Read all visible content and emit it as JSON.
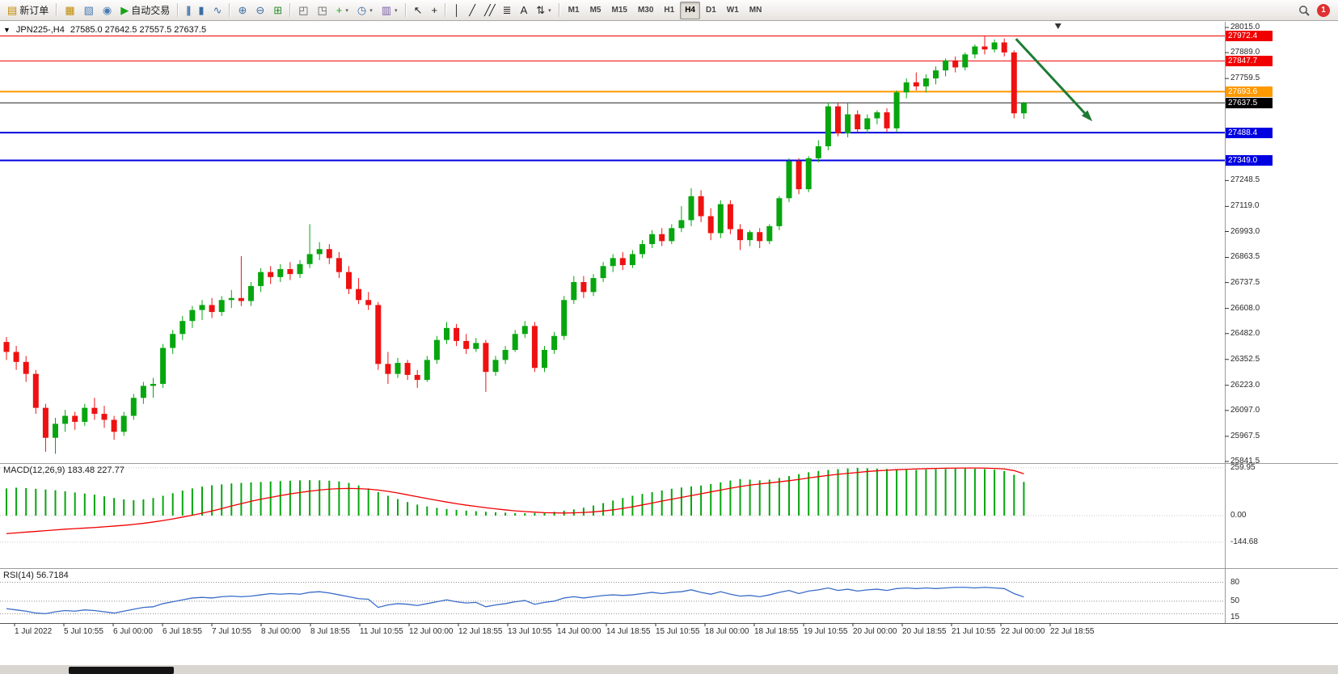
{
  "toolbar": {
    "new_order_label": "新订单",
    "autotrading_label": "自动交易",
    "notification_count": "1",
    "timeframes": [
      "M1",
      "M5",
      "M15",
      "M30",
      "H1",
      "H4",
      "D1",
      "W1",
      "MN"
    ],
    "active_timeframe": "H4",
    "groups": [
      {
        "items": [
          {
            "name": "new-order-button",
            "glyph": "▤",
            "color": "#C08A00",
            "label": "新订单"
          }
        ]
      },
      {
        "items": [
          {
            "name": "new-chart-button",
            "glyph": "▦",
            "color": "#C08A00"
          },
          {
            "name": "profiles-button",
            "glyph": "▧",
            "color": "#4A7AB5"
          },
          {
            "name": "refresh-button",
            "glyph": "◉",
            "color": "#4A7AB5"
          },
          {
            "name": "autotrading-button",
            "glyph": "▶",
            "color": "#1BA11B",
            "label": "自动交易"
          }
        ]
      },
      {
        "items": [
          {
            "name": "bar-chart-button",
            "glyph": "|||",
            "color": "#3A6EA5"
          },
          {
            "name": "candlestick-chart-button",
            "glyph": "▮",
            "color": "#3A6EA5"
          },
          {
            "name": "line-chart-button",
            "glyph": "∿",
            "color": "#3A6EA5"
          }
        ]
      },
      {
        "items": [
          {
            "name": "zoom-in-button",
            "glyph": "⊕",
            "color": "#3A6EA5"
          },
          {
            "name": "zoom-out-button",
            "glyph": "⊖",
            "color": "#3A6EA5"
          },
          {
            "name": "tile-windows-button",
            "glyph": "⊞",
            "color": "#2E8B2E"
          }
        ]
      },
      {
        "items": [
          {
            "name": "cascade-windows-button",
            "glyph": "◰",
            "color": "#555555"
          },
          {
            "name": "arrange-windows-button",
            "glyph": "◳",
            "color": "#555555"
          },
          {
            "name": "indicators-button",
            "glyph": "+",
            "color": "#1BA11B",
            "caret": true
          },
          {
            "name": "periods-button",
            "glyph": "◷",
            "color": "#3A6EA5",
            "caret": true
          },
          {
            "name": "templates-button",
            "glyph": "▥",
            "color": "#7A5AA5",
            "caret": true
          }
        ]
      },
      {
        "items": [
          {
            "name": "cursor-button",
            "glyph": "↖",
            "color": "#222222"
          },
          {
            "name": "crosshair-button",
            "glyph": "+",
            "color": "#222222"
          }
        ]
      },
      {
        "items": [
          {
            "name": "vertical-line-button",
            "glyph": "│",
            "color": "#222222"
          },
          {
            "name": "trendline-button",
            "glyph": "╱",
            "color": "#222222"
          },
          {
            "name": "equidistant-channel-button",
            "glyph": "╱╱",
            "color": "#222222"
          },
          {
            "name": "fibonacci-button",
            "glyph": "≣",
            "color": "#222222"
          },
          {
            "name": "text-button",
            "glyph": "A",
            "color": "#222222"
          },
          {
            "name": "arrows-button",
            "glyph": "⇅",
            "color": "#222222",
            "caret": true
          }
        ]
      }
    ]
  },
  "chart": {
    "title": "JPN225-,H4",
    "ohlc": "27585.0 27642.5 27557.5 27637.5"
  },
  "chart_data": {
    "type": "candlestick",
    "symbol": "JPN225-",
    "timeframe": "H4",
    "colors": {
      "up": "#07A60F",
      "down": "#EE1111"
    },
    "price_axis": {
      "max": 28015.0,
      "min": 25841.5,
      "ticks": [
        "28015.0",
        "27889.0",
        "27759.5",
        "27248.5",
        "27119.0",
        "26993.0",
        "26863.5",
        "26737.5",
        "26608.0",
        "26482.0",
        "26352.5",
        "26223.0",
        "26097.0",
        "25967.5",
        "25841.5"
      ]
    },
    "hlines": [
      {
        "label": "27972.4",
        "price": 27972.4,
        "color": "#F00000",
        "width": 1
      },
      {
        "label": "27847.7",
        "price": 27847.7,
        "color": "#F00000",
        "width": 1
      },
      {
        "label": "27693.6",
        "price": 27693.6,
        "color": "#FF9900",
        "width": 2
      },
      {
        "label": "27488.4",
        "price": 27488.4,
        "color": "#0000E0",
        "width": 2
      },
      {
        "label": "27349.0",
        "price": 27349.0,
        "color": "#0000E0",
        "width": 2
      }
    ],
    "current_price": {
      "label": "27637.5",
      "price": 27637.5,
      "color": "#000000"
    },
    "annotation_arrow": {
      "from_bar": 103.2,
      "from_price": 27958,
      "to_bar": 111,
      "to_price": 27545,
      "color": "#1E7B34"
    },
    "shift_marker_bar": 107.5,
    "candles": [
      [
        26440,
        26465,
        26350,
        26390
      ],
      [
        26390,
        26420,
        26300,
        26340
      ],
      [
        26340,
        26370,
        26240,
        26280
      ],
      [
        26280,
        26300,
        26080,
        26110
      ],
      [
        26110,
        26130,
        25890,
        25960
      ],
      [
        25960,
        26060,
        25880,
        26030
      ],
      [
        26030,
        26100,
        25990,
        26070
      ],
      [
        26070,
        26090,
        26000,
        26040
      ],
      [
        26040,
        26130,
        26020,
        26110
      ],
      [
        26110,
        26160,
        26050,
        26080
      ],
      [
        26080,
        26120,
        26010,
        26050
      ],
      [
        26050,
        26070,
        25950,
        25990
      ],
      [
        25990,
        26090,
        25970,
        26070
      ],
      [
        26070,
        26180,
        26050,
        26160
      ],
      [
        26160,
        26240,
        26130,
        26220
      ],
      [
        26220,
        26260,
        26160,
        26230
      ],
      [
        26230,
        26430,
        26210,
        26410
      ],
      [
        26410,
        26500,
        26380,
        26480
      ],
      [
        26480,
        26570,
        26450,
        26545
      ],
      [
        26545,
        26620,
        26510,
        26600
      ],
      [
        26600,
        26650,
        26550,
        26625
      ],
      [
        26625,
        26660,
        26560,
        26590
      ],
      [
        26590,
        26670,
        26570,
        26650
      ],
      [
        26650,
        26700,
        26610,
        26660
      ],
      [
        26660,
        26870,
        26620,
        26645
      ],
      [
        26645,
        26740,
        26620,
        26720
      ],
      [
        26720,
        26810,
        26690,
        26790
      ],
      [
        26790,
        26820,
        26730,
        26765
      ],
      [
        26765,
        26830,
        26740,
        26805
      ],
      [
        26805,
        26840,
        26750,
        26780
      ],
      [
        26780,
        26850,
        26760,
        26830
      ],
      [
        26830,
        27030,
        26810,
        26880
      ],
      [
        26880,
        26940,
        26850,
        26905
      ],
      [
        26905,
        26930,
        26830,
        26860
      ],
      [
        26860,
        26890,
        26760,
        26790
      ],
      [
        26790,
        26820,
        26680,
        26705
      ],
      [
        26705,
        26760,
        26630,
        26650
      ],
      [
        26650,
        26690,
        26600,
        26625
      ],
      [
        26625,
        26640,
        26300,
        26330
      ],
      [
        26330,
        26390,
        26230,
        26280
      ],
      [
        26280,
        26360,
        26260,
        26335
      ],
      [
        26335,
        26350,
        26250,
        26275
      ],
      [
        26275,
        26300,
        26210,
        26250
      ],
      [
        26250,
        26370,
        26240,
        26350
      ],
      [
        26350,
        26470,
        26330,
        26450
      ],
      [
        26450,
        26540,
        26430,
        26510
      ],
      [
        26510,
        26530,
        26420,
        26445
      ],
      [
        26445,
        26480,
        26380,
        26405
      ],
      [
        26405,
        26460,
        26390,
        26435
      ],
      [
        26435,
        26450,
        26190,
        26290
      ],
      [
        26290,
        26370,
        26270,
        26350
      ],
      [
        26350,
        26420,
        26330,
        26400
      ],
      [
        26400,
        26500,
        26390,
        26480
      ],
      [
        26480,
        26545,
        26460,
        26520
      ],
      [
        26520,
        26540,
        26290,
        26310
      ],
      [
        26310,
        26420,
        26290,
        26400
      ],
      [
        26400,
        26490,
        26380,
        26470
      ],
      [
        26470,
        26670,
        26450,
        26650
      ],
      [
        26650,
        26770,
        26630,
        26740
      ],
      [
        26740,
        26770,
        26660,
        26690
      ],
      [
        26690,
        26780,
        26670,
        26760
      ],
      [
        26760,
        26840,
        26740,
        26820
      ],
      [
        26820,
        26880,
        26790,
        26860
      ],
      [
        26860,
        26890,
        26800,
        26825
      ],
      [
        26825,
        26900,
        26810,
        26880
      ],
      [
        26880,
        26950,
        26860,
        26930
      ],
      [
        26930,
        27000,
        26910,
        26980
      ],
      [
        26980,
        27010,
        26920,
        26945
      ],
      [
        26945,
        27030,
        26930,
        27010
      ],
      [
        27010,
        27120,
        26990,
        27050
      ],
      [
        27050,
        27210,
        27020,
        27170
      ],
      [
        27170,
        27200,
        27040,
        27070
      ],
      [
        27070,
        27110,
        26950,
        26985
      ],
      [
        26985,
        27150,
        26960,
        27130
      ],
      [
        27130,
        27150,
        26980,
        27005
      ],
      [
        27005,
        27030,
        26900,
        26950
      ],
      [
        26950,
        27000,
        26920,
        26990
      ],
      [
        26990,
        27010,
        26910,
        26945
      ],
      [
        26945,
        27030,
        26930,
        27020
      ],
      [
        27020,
        27170,
        27000,
        27160
      ],
      [
        27160,
        27360,
        27140,
        27345
      ],
      [
        27345,
        27360,
        27180,
        27205
      ],
      [
        27205,
        27370,
        27190,
        27360
      ],
      [
        27360,
        27450,
        27340,
        27420
      ],
      [
        27420,
        27640,
        27400,
        27620
      ],
      [
        27620,
        27640,
        27470,
        27485
      ],
      [
        27485,
        27640,
        27465,
        27580
      ],
      [
        27580,
        27600,
        27490,
        27505
      ],
      [
        27505,
        27580,
        27485,
        27560
      ],
      [
        27560,
        27600,
        27530,
        27590
      ],
      [
        27590,
        27610,
        27490,
        27510
      ],
      [
        27510,
        27700,
        27490,
        27690
      ],
      [
        27690,
        27760,
        27660,
        27740
      ],
      [
        27740,
        27790,
        27700,
        27720
      ],
      [
        27720,
        27780,
        27690,
        27760
      ],
      [
        27760,
        27820,
        27730,
        27800
      ],
      [
        27800,
        27860,
        27770,
        27850
      ],
      [
        27850,
        27870,
        27790,
        27815
      ],
      [
        27815,
        27890,
        27800,
        27880
      ],
      [
        27880,
        27930,
        27860,
        27920
      ],
      [
        27920,
        27975,
        27880,
        27905
      ],
      [
        27905,
        27955,
        27890,
        27940
      ],
      [
        27940,
        27960,
        27870,
        27890
      ],
      [
        27890,
        27900,
        27560,
        27585
      ],
      [
        27585,
        27642.5,
        27557.5,
        27637.5
      ]
    ],
    "macd": {
      "label": "MACD(12,26,9)",
      "values_text": "183.48 227.77",
      "axis_labels": [
        "259.95",
        "0.00",
        "-144.68"
      ],
      "axis_values": [
        259.95,
        0,
        -144.68
      ],
      "colors": {
        "histogram": "#07A60F",
        "signal": "#F00000"
      },
      "histogram": [
        148,
        152,
        150,
        146,
        142,
        138,
        132,
        126,
        120,
        114,
        105,
        96,
        88,
        84,
        88,
        96,
        108,
        122,
        136,
        148,
        158,
        165,
        170,
        175,
        178,
        181,
        183,
        186,
        188,
        190,
        192,
        193,
        192,
        190,
        186,
        178,
        164,
        148,
        128,
        108,
        90,
        74,
        60,
        50,
        42,
        36,
        31,
        27,
        24,
        21,
        18,
        16,
        14,
        13,
        14,
        17,
        21,
        27,
        34,
        43,
        55,
        68,
        82,
        96,
        108,
        118,
        128,
        137,
        146,
        153,
        159,
        164,
        172,
        181,
        191,
        199,
        196,
        192,
        196,
        205,
        215,
        226,
        236,
        243,
        249,
        253,
        257,
        259.95,
        258,
        256,
        254,
        252,
        250,
        249,
        251,
        253,
        254,
        255,
        256,
        255,
        253,
        250,
        243,
        222,
        183.48
      ],
      "signal": [
        -98,
        -94,
        -90,
        -86,
        -82,
        -78,
        -74,
        -71,
        -68,
        -65,
        -61,
        -57,
        -53,
        -48,
        -42,
        -35,
        -27,
        -18,
        -8,
        2,
        13,
        25,
        38,
        52,
        65,
        78,
        89,
        99,
        109,
        118,
        126,
        133,
        139,
        144,
        147,
        148,
        147,
        144,
        139,
        132,
        123,
        113,
        103,
        93,
        83,
        74,
        65,
        57,
        50,
        43,
        37,
        31,
        26,
        22,
        19,
        16,
        15,
        14,
        15,
        17,
        20,
        25,
        31,
        39,
        48,
        58,
        68,
        79,
        89,
        99,
        109,
        119,
        129,
        139,
        149,
        158,
        166,
        172,
        178,
        184,
        190,
        197,
        205,
        212,
        219,
        225,
        230,
        235,
        240,
        244,
        247,
        250,
        252,
        254,
        255.5,
        257,
        258,
        258.5,
        259,
        259,
        258.5,
        257,
        254,
        245,
        227.77
      ]
    },
    "rsi": {
      "label": "RSI(14)",
      "value_text": "56.7184",
      "color": "#3A6CC8",
      "levels": [
        80,
        50,
        30
      ],
      "axis_labels": [
        {
          "text": "80",
          "value": 80
        },
        {
          "text": "50",
          "value": 50
        },
        {
          "text": "15",
          "value": 15
        }
      ],
      "values": [
        38,
        36,
        34,
        31,
        30,
        33,
        35,
        34,
        36,
        35,
        33,
        31,
        34,
        37,
        40,
        41,
        46,
        49,
        52,
        55,
        56,
        55,
        57,
        58,
        57,
        58,
        60,
        62,
        61,
        62,
        61,
        64,
        65,
        63,
        60,
        57,
        54,
        53,
        40,
        44,
        46,
        45,
        43,
        46,
        49,
        52,
        49,
        47,
        48,
        41,
        44,
        46,
        49,
        51,
        45,
        48,
        50,
        55,
        57,
        55,
        57,
        59,
        60,
        59,
        60,
        62,
        64,
        62,
        64,
        65,
        68,
        64,
        61,
        65,
        61,
        58,
        59,
        57,
        60,
        64,
        67,
        62,
        66,
        68,
        71,
        67,
        69,
        66,
        68,
        69,
        67,
        70,
        71,
        70,
        71,
        70,
        71,
        72,
        72,
        71,
        72,
        71,
        70,
        62,
        56.72
      ]
    },
    "time_labels": [
      "1 Jul 2022",
      "5 Jul 10:55",
      "6 Jul 00:00",
      "6 Jul 18:55",
      "7 Jul 10:55",
      "8 Jul 00:00",
      "8 Jul 18:55",
      "11 Jul 10:55",
      "12 Jul 00:00",
      "12 Jul 18:55",
      "13 Jul 10:55",
      "14 Jul 00:00",
      "14 Jul 18:55",
      "15 Jul 10:55",
      "18 Jul 00:00",
      "18 Jul 18:55",
      "19 Jul 10:55",
      "20 Jul 00:00",
      "20 Jul 18:55",
      "21 Jul 10:55",
      "22 Jul 00:00",
      "22 Jul 18:55"
    ]
  }
}
